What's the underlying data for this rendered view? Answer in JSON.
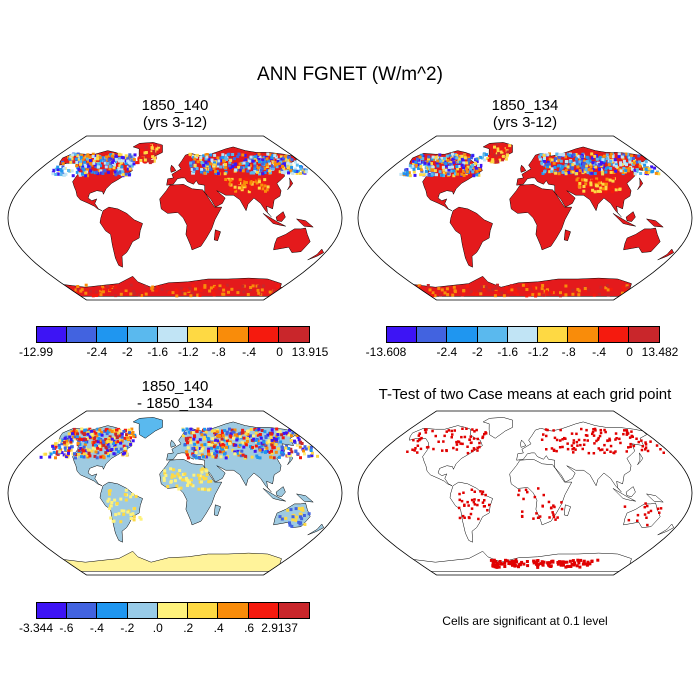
{
  "title": "ANN FGNET (W/m^2)",
  "panels": [
    {
      "id": "case1",
      "title_line1": "1850_140",
      "title_line2": "(yrs 3-12)",
      "colorbar": {
        "colors": [
          "#3d14f5",
          "#4263e0",
          "#1f96f0",
          "#5ab9ee",
          "#c1e4f5",
          "#fed943",
          "#f98c0a",
          "#f51a0e",
          "#c9262b"
        ],
        "labels": [
          "-12.99",
          "",
          "-2.4",
          "-2",
          "-1.6",
          "-1.2",
          "-.8",
          "-.4",
          "0",
          "13.915"
        ]
      }
    },
    {
      "id": "case2",
      "title_line1": "1850_134",
      "title_line2": "(yrs 3-12)",
      "colorbar": {
        "colors": [
          "#3d14f5",
          "#4263e0",
          "#1f96f0",
          "#5ab9ee",
          "#c1e4f5",
          "#fed943",
          "#f98c0a",
          "#f51a0e",
          "#c9262b"
        ],
        "labels": [
          "-13.608",
          "",
          "-2.4",
          "-2",
          "-1.6",
          "-1.2",
          "-.8",
          "-.4",
          "0",
          "13.482"
        ]
      }
    },
    {
      "id": "difference",
      "title_line1": "1850_140",
      "title_line2": "- 1850_134",
      "colorbar": {
        "colors": [
          "#3d14f5",
          "#4263e0",
          "#1f96f0",
          "#98cbe8",
          "#fef27c",
          "#fed943",
          "#f98c0a",
          "#f51a0e",
          "#c9262b"
        ],
        "labels": [
          "-3.344",
          "-.6",
          "-.4",
          "-.2",
          ".0",
          ".2",
          ".4",
          ".6",
          "2.9137"
        ]
      }
    },
    {
      "id": "ttest",
      "title_line1": "T-Test of two Case means at each grid point",
      "note": "Cells are significant at 0.1 level"
    }
  ],
  "colors": {
    "land_warm": "#e41a1c",
    "land_diff": "#9ecae1",
    "sig": "#e00000",
    "antarctica_diff": "#fff39a"
  }
}
